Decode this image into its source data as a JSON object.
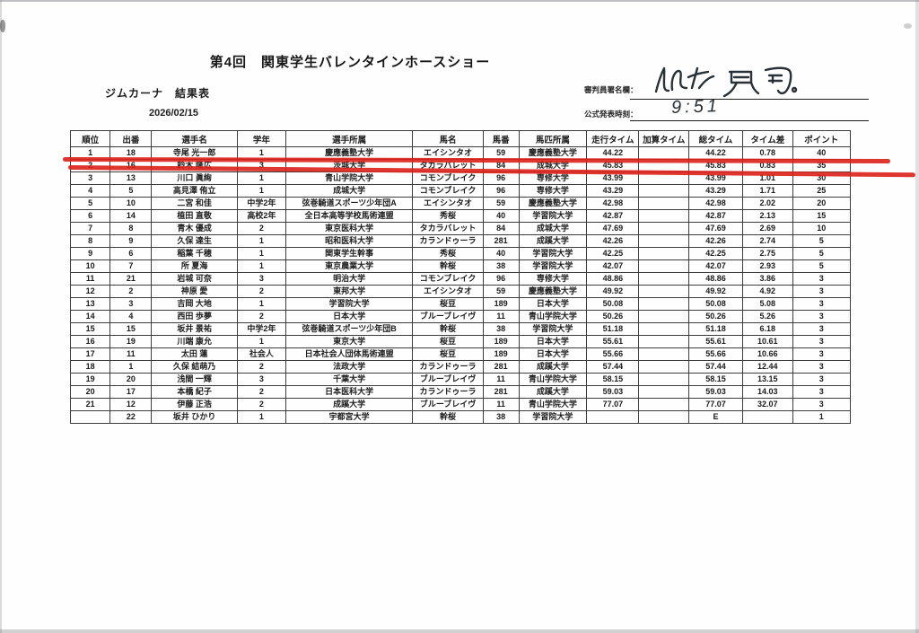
{
  "page": {
    "title": "第4回　関東学生バレンタインホースショー",
    "subtitle": "ジムカーナ　結果表",
    "date": "2026/02/15",
    "judge_label": "審判員署名欄：",
    "judge_signature": "小林 昂司",
    "announce_label": "公式発表時刻：",
    "announce_time": "9:51",
    "highlight_color": "#dd2019",
    "highlighted_rank": "1"
  },
  "table": {
    "headers": [
      "順位",
      "出番",
      "選手名",
      "学年",
      "選手所属",
      "馬名",
      "馬番",
      "馬匹所属",
      "走行タイム",
      "加算タイム",
      "総タイム",
      "タイム差",
      "ポイント"
    ],
    "rows": [
      [
        "1",
        "18",
        "寺尾 光一郎",
        "1",
        "慶應義塾大学",
        "エイシンタオ",
        "59",
        "慶應義塾大学",
        "44.22",
        "",
        "44.22",
        "0.78",
        "40"
      ],
      [
        "2",
        "16",
        "鈴木 隆広",
        "3",
        "茨城大学",
        "タカラバレット",
        "84",
        "成城大学",
        "45.83",
        "",
        "45.83",
        "0.83",
        "35"
      ],
      [
        "3",
        "13",
        "川口 眞絢",
        "1",
        "青山学院大学",
        "コモンブレイク",
        "96",
        "専修大学",
        "43.99",
        "",
        "43.99",
        "1.01",
        "30"
      ],
      [
        "4",
        "5",
        "高見澤 侑立",
        "1",
        "成城大学",
        "コモンブレイク",
        "96",
        "専修大学",
        "43.29",
        "",
        "43.29",
        "1.71",
        "25"
      ],
      [
        "5",
        "10",
        "二宮 和佳",
        "中学2年",
        "弦巻騎道スポーツ少年団A",
        "エイシンタオ",
        "59",
        "慶應義塾大学",
        "42.98",
        "",
        "42.98",
        "2.02",
        "20"
      ],
      [
        "6",
        "14",
        "植田 直敬",
        "高校2年",
        "全日本高等学校馬術連盟",
        "秀桜",
        "40",
        "学習院大学",
        "42.87",
        "",
        "42.87",
        "2.13",
        "15"
      ],
      [
        "7",
        "8",
        "青木 優成",
        "2",
        "東京医科大学",
        "タカラバレット",
        "84",
        "成城大学",
        "47.69",
        "",
        "47.69",
        "2.69",
        "10"
      ],
      [
        "8",
        "9",
        "久保 達生",
        "1",
        "昭和医科大学",
        "カランドゥーラ",
        "281",
        "成蹊大学",
        "42.26",
        "",
        "42.26",
        "2.74",
        "5"
      ],
      [
        "9",
        "6",
        "稲葉 千穂",
        "1",
        "関東学生幹事",
        "秀桜",
        "40",
        "学習院大学",
        "42.25",
        "",
        "42.25",
        "2.75",
        "5"
      ],
      [
        "10",
        "7",
        "所 夏海",
        "1",
        "東京農業大学",
        "幹桜",
        "38",
        "学習院大学",
        "42.07",
        "",
        "42.07",
        "2.93",
        "5"
      ],
      [
        "11",
        "21",
        "岩城 可奈",
        "3",
        "明治大学",
        "コモンブレイク",
        "96",
        "専修大学",
        "48.86",
        "",
        "48.86",
        "3.86",
        "3"
      ],
      [
        "12",
        "2",
        "神原 愛",
        "2",
        "東邦大学",
        "エイシンタオ",
        "59",
        "慶應義塾大学",
        "49.92",
        "",
        "49.92",
        "4.92",
        "3"
      ],
      [
        "13",
        "3",
        "吉岡 大地",
        "1",
        "学習院大学",
        "桜豆",
        "189",
        "日本大学",
        "50.08",
        "",
        "50.08",
        "5.08",
        "3"
      ],
      [
        "14",
        "4",
        "西田 歩夢",
        "2",
        "日本大学",
        "ブルーブレイヴ",
        "11",
        "青山学院大学",
        "50.26",
        "",
        "50.26",
        "5.26",
        "3"
      ],
      [
        "15",
        "15",
        "坂井 景祐",
        "中学2年",
        "弦巻騎道スポーツ少年団B",
        "幹桜",
        "38",
        "学習院大学",
        "51.18",
        "",
        "51.18",
        "6.18",
        "3"
      ],
      [
        "16",
        "19",
        "川端 康允",
        "1",
        "東京大学",
        "桜豆",
        "189",
        "日本大学",
        "55.61",
        "",
        "55.61",
        "10.61",
        "3"
      ],
      [
        "17",
        "11",
        "太田 蓮",
        "社会人",
        "日本社会人団体馬術連盟",
        "桜豆",
        "189",
        "日本大学",
        "55.66",
        "",
        "55.66",
        "10.66",
        "3"
      ],
      [
        "18",
        "1",
        "久保 結萌乃",
        "2",
        "法政大学",
        "カランドゥーラ",
        "281",
        "成蹊大学",
        "57.44",
        "",
        "57.44",
        "12.44",
        "3"
      ],
      [
        "19",
        "20",
        "浅間 一輝",
        "3",
        "千葉大学",
        "ブルーブレイヴ",
        "11",
        "青山学院大学",
        "58.15",
        "",
        "58.15",
        "13.15",
        "3"
      ],
      [
        "20",
        "17",
        "本橋 紀子",
        "2",
        "日本医科大学",
        "カランドゥーラ",
        "281",
        "成蹊大学",
        "59.03",
        "",
        "59.03",
        "14.03",
        "3"
      ],
      [
        "21",
        "12",
        "伊藤 正浩",
        "2",
        "成蹊大学",
        "ブルーブレイヴ",
        "11",
        "青山学院大学",
        "77.07",
        "",
        "77.07",
        "32.07",
        "3"
      ],
      [
        "",
        "22",
        "坂井 ひかり",
        "1",
        "宇都宮大学",
        "幹桜",
        "38",
        "学習院大学",
        "",
        "",
        "E",
        "",
        "1"
      ]
    ]
  }
}
